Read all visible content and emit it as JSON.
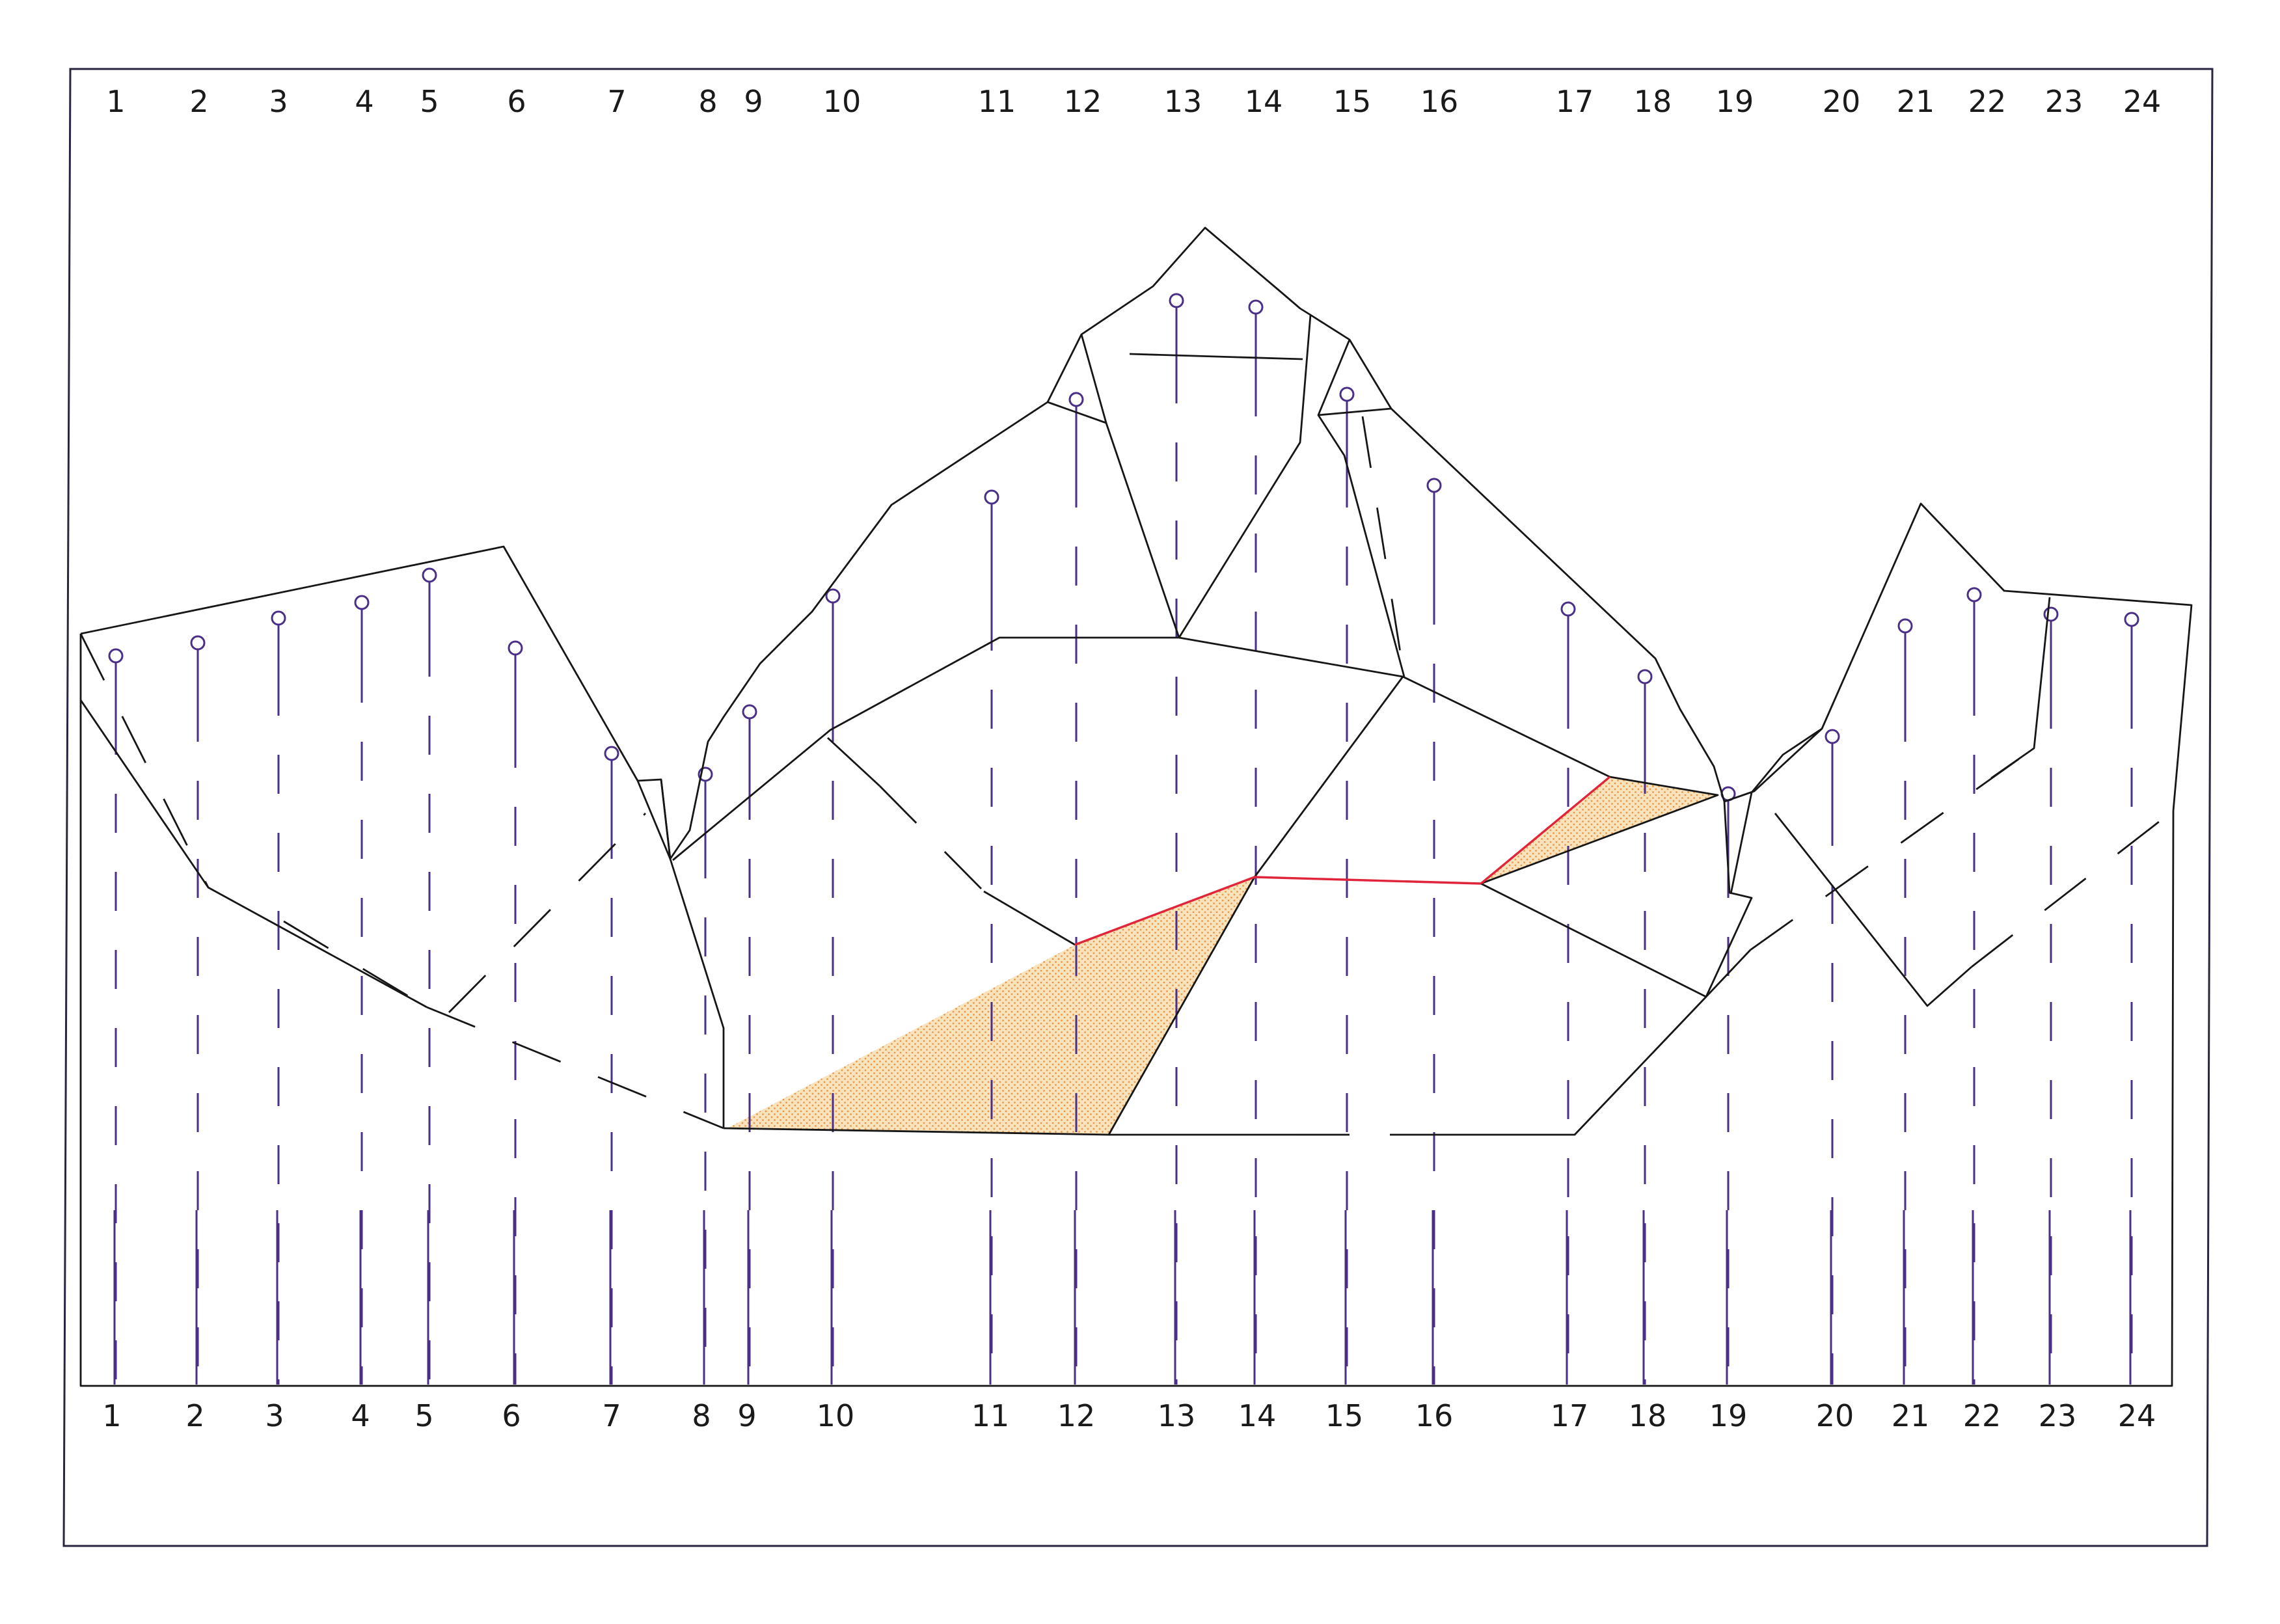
{
  "drawing": {
    "top_labels": [
      "1",
      "2",
      "3",
      "4",
      "5",
      "6",
      "7",
      "8",
      "9",
      "10",
      "11",
      "12",
      "13",
      "14",
      "15",
      "16",
      "17",
      "18",
      "19",
      "20",
      "21",
      "22",
      "23",
      "24"
    ],
    "bottom_labels": [
      "1",
      "2",
      "3",
      "4",
      "5",
      "6",
      "7",
      "8",
      "9",
      "10",
      "11",
      "12",
      "13",
      "14",
      "15",
      "16",
      "17",
      "18",
      "19",
      "20",
      "21",
      "22",
      "23",
      "24"
    ]
  },
  "colors": {
    "outline": "#161616",
    "pole": "#4a2f86",
    "highlight_edge": "#e0243a",
    "shaded_fill": "#f6d49a",
    "shaded_dots": "#e79a4e"
  }
}
